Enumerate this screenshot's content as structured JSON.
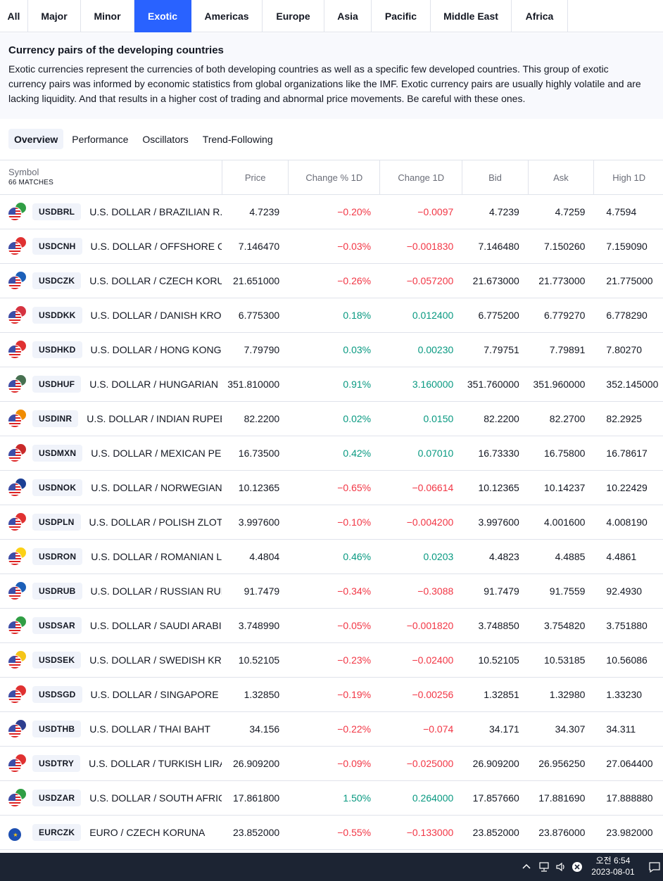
{
  "region_tabs": [
    "All",
    "Major",
    "Minor",
    "Exotic",
    "Americas",
    "Europe",
    "Asia",
    "Pacific",
    "Middle East",
    "Africa"
  ],
  "active_region": "Exotic",
  "description": {
    "title": "Currency pairs of the developing countries",
    "text": "Exotic currencies represent the currencies of both developing countries as well as a specific few developed countries. This group of exotic currency pairs was informed by economic statistics from global organizations like the IMF. Exotic currency pairs are usually highly volatile and are lacking liquidity. And that results in a higher cost of trading and abnormal price movements. Be careful with these ones."
  },
  "column_tabs": [
    "Overview",
    "Performance",
    "Oscillators",
    "Trend-Following"
  ],
  "active_column_tab": "Overview",
  "table": {
    "symbol_header": "Symbol",
    "matches": "66 MATCHES",
    "headers": [
      "Price",
      "Change % 1D",
      "Change 1D",
      "Bid",
      "Ask",
      "High 1D"
    ],
    "rows": [
      {
        "ticker": "USDBRL",
        "name": "U.S. DOLLAR / BRAZILIAN R...",
        "flag_color": "#2f9e44",
        "price": "4.7239",
        "change_pct": "−0.20%",
        "change": "−0.0097",
        "bid": "4.7239",
        "ask": "4.7259",
        "high": "4.7594",
        "dir": "neg"
      },
      {
        "ticker": "USDCNH",
        "name": "U.S. DOLLAR / OFFSHORE C...",
        "flag_color": "#e03131",
        "price": "7.146470",
        "change_pct": "−0.03%",
        "change": "−0.001830",
        "bid": "7.146480",
        "ask": "7.150260",
        "high": "7.159090",
        "dir": "neg"
      },
      {
        "ticker": "USDCZK",
        "name": "U.S. DOLLAR / CZECH KORU...",
        "flag_color": "#1c5fb8",
        "price": "21.651000",
        "change_pct": "−0.26%",
        "change": "−0.057200",
        "bid": "21.673000",
        "ask": "21.773000",
        "high": "21.775000",
        "dir": "neg"
      },
      {
        "ticker": "USDDKK",
        "name": "U.S. DOLLAR / DANISH KRONE",
        "flag_color": "#d63340",
        "price": "6.775300",
        "change_pct": "0.18%",
        "change": "0.012400",
        "bid": "6.775200",
        "ask": "6.779270",
        "high": "6.778290",
        "dir": "pos"
      },
      {
        "ticker": "USDHKD",
        "name": "U.S. DOLLAR / HONG KONG ...",
        "flag_color": "#e03131",
        "price": "7.79790",
        "change_pct": "0.03%",
        "change": "0.00230",
        "bid": "7.79751",
        "ask": "7.79891",
        "high": "7.80270",
        "dir": "pos"
      },
      {
        "ticker": "USDHUF",
        "name": "U.S. DOLLAR / HUNGARIAN ...",
        "flag_color": "#477050",
        "price": "351.810000",
        "change_pct": "0.91%",
        "change": "3.160000",
        "bid": "351.760000",
        "ask": "351.960000",
        "high": "352.145000",
        "dir": "pos"
      },
      {
        "ticker": "USDINR",
        "name": "U.S. DOLLAR / INDIAN RUPEE",
        "flag_color": "#f08c00",
        "price": "82.2200",
        "change_pct": "0.02%",
        "change": "0.0150",
        "bid": "82.2200",
        "ask": "82.2700",
        "high": "82.2925",
        "dir": "pos"
      },
      {
        "ticker": "USDMXN",
        "name": "U.S. DOLLAR / MEXICAN PESO",
        "flag_color": "#c92a2a",
        "price": "16.73500",
        "change_pct": "0.42%",
        "change": "0.07010",
        "bid": "16.73330",
        "ask": "16.75800",
        "high": "16.78617",
        "dir": "pos"
      },
      {
        "ticker": "USDNOK",
        "name": "U.S. DOLLAR / NORWEGIAN ...",
        "flag_color": "#1c3f94",
        "price": "10.12365",
        "change_pct": "−0.65%",
        "change": "−0.06614",
        "bid": "10.12365",
        "ask": "10.14237",
        "high": "10.22429",
        "dir": "neg"
      },
      {
        "ticker": "USDPLN",
        "name": "U.S. DOLLAR / POLISH ZLOTY",
        "flag_color": "#e03131",
        "price": "3.997600",
        "change_pct": "−0.10%",
        "change": "−0.004200",
        "bid": "3.997600",
        "ask": "4.001600",
        "high": "4.008190",
        "dir": "neg"
      },
      {
        "ticker": "USDRON",
        "name": "U.S. DOLLAR / ROMANIAN L...",
        "flag_color": "#fcd116",
        "price": "4.4804",
        "change_pct": "0.46%",
        "change": "0.0203",
        "bid": "4.4823",
        "ask": "4.4885",
        "high": "4.4861",
        "dir": "pos"
      },
      {
        "ticker": "USDRUB",
        "name": "U.S. DOLLAR / RUSSIAN RUB...",
        "flag_color": "#1c5fb8",
        "price": "91.7479",
        "change_pct": "−0.34%",
        "change": "−0.3088",
        "bid": "91.7479",
        "ask": "91.7559",
        "high": "92.4930",
        "dir": "neg"
      },
      {
        "ticker": "USDSAR",
        "name": "U.S. DOLLAR / SAUDI ARABI...",
        "flag_color": "#2f9e44",
        "price": "3.748990",
        "change_pct": "−0.05%",
        "change": "−0.001820",
        "bid": "3.748850",
        "ask": "3.754820",
        "high": "3.751880",
        "dir": "neg"
      },
      {
        "ticker": "USDSEK",
        "name": "U.S. DOLLAR / SWEDISH KRO...",
        "flag_color": "#f5c518",
        "price": "10.52105",
        "change_pct": "−0.23%",
        "change": "−0.02400",
        "bid": "10.52105",
        "ask": "10.53185",
        "high": "10.56086",
        "dir": "neg"
      },
      {
        "ticker": "USDSGD",
        "name": "U.S. DOLLAR / SINGAPORE D...",
        "flag_color": "#e03131",
        "price": "1.32850",
        "change_pct": "−0.19%",
        "change": "−0.00256",
        "bid": "1.32851",
        "ask": "1.32980",
        "high": "1.33230",
        "dir": "neg"
      },
      {
        "ticker": "USDTHB",
        "name": "U.S. DOLLAR / THAI BAHT",
        "flag_color": "#2d3e8f",
        "price": "34.156",
        "change_pct": "−0.22%",
        "change": "−0.074",
        "bid": "34.171",
        "ask": "34.307",
        "high": "34.311",
        "dir": "neg"
      },
      {
        "ticker": "USDTRY",
        "name": "U.S. DOLLAR / TURKISH LIRA",
        "flag_color": "#e03131",
        "price": "26.909200",
        "change_pct": "−0.09%",
        "change": "−0.025000",
        "bid": "26.909200",
        "ask": "26.956250",
        "high": "27.064400",
        "dir": "neg"
      },
      {
        "ticker": "USDZAR",
        "name": "U.S. DOLLAR / SOUTH AFRIC...",
        "flag_color": "#2f9e44",
        "price": "17.861800",
        "change_pct": "1.50%",
        "change": "0.264000",
        "bid": "17.857660",
        "ask": "17.881690",
        "high": "17.888880",
        "dir": "pos"
      },
      {
        "ticker": "EURCZK",
        "name": "EURO / CZECH KORUNA",
        "flag_color": "#1c5fb8",
        "flag_type": "eu",
        "price": "23.852000",
        "change_pct": "−0.55%",
        "change": "−0.133000",
        "bid": "23.852000",
        "ask": "23.876000",
        "high": "23.982000",
        "dir": "neg"
      }
    ]
  },
  "taskbar": {
    "time": "오전 6:54",
    "date": "2023-08-01",
    "icons": [
      "chevron-up-icon",
      "network-icon",
      "volume-icon",
      "close-circle-icon",
      "notification-icon"
    ]
  },
  "colors": {
    "accent": "#2962ff",
    "positive": "#089981",
    "negative": "#f23645"
  }
}
